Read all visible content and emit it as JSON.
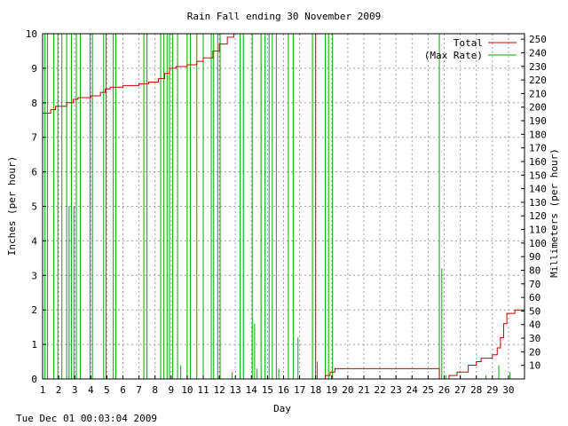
{
  "chart_data": {
    "type": "line",
    "title": "Rain Fall ending 30 November 2009",
    "xlabel": "Day",
    "ylabel": "Inches (per hour)",
    "ylabel_right": "Millimeters (per hour)",
    "footer": "Tue Dec 01 00:03:04 2009",
    "xlim": [
      1,
      31
    ],
    "ylim": [
      0,
      10
    ],
    "ylim_right": [
      0,
      254
    ],
    "x_ticks": [
      "1",
      "2",
      "3",
      "4",
      "5",
      "6",
      "7",
      "8",
      "9",
      "10",
      "11",
      "12",
      "13",
      "14",
      "15",
      "16",
      "17",
      "18",
      "19",
      "20",
      "21",
      "22",
      "23",
      "24",
      "25",
      "26",
      "27",
      "28",
      "29",
      "30"
    ],
    "y_ticks_left": [
      "0",
      "1",
      "2",
      "3",
      "4",
      "5",
      "6",
      "7",
      "8",
      "9",
      "10"
    ],
    "y_ticks_right": [
      "10",
      "20",
      "30",
      "40",
      "50",
      "60",
      "70",
      "80",
      "90",
      "100",
      "110",
      "120",
      "130",
      "140",
      "150",
      "160",
      "170",
      "180",
      "190",
      "200",
      "210",
      "220",
      "230",
      "240",
      "250"
    ],
    "grid": true,
    "legend_position": "top-right",
    "series": [
      {
        "name": "Total",
        "color": "#cc0000",
        "step": true,
        "points": [
          [
            1.0,
            7.7
          ],
          [
            1.5,
            7.8
          ],
          [
            1.8,
            7.9
          ],
          [
            2.5,
            8.0
          ],
          [
            2.9,
            8.1
          ],
          [
            3.2,
            8.15
          ],
          [
            4.0,
            8.2
          ],
          [
            4.6,
            8.3
          ],
          [
            4.9,
            8.4
          ],
          [
            5.2,
            8.45
          ],
          [
            6.0,
            8.5
          ],
          [
            7.0,
            8.55
          ],
          [
            7.6,
            8.6
          ],
          [
            8.2,
            8.7
          ],
          [
            8.6,
            8.85
          ],
          [
            8.9,
            9.0
          ],
          [
            9.3,
            9.05
          ],
          [
            10.0,
            9.1
          ],
          [
            10.6,
            9.2
          ],
          [
            11.0,
            9.3
          ],
          [
            11.6,
            9.5
          ],
          [
            12.0,
            9.7
          ],
          [
            12.5,
            9.9
          ],
          [
            12.9,
            10.0
          ],
          [
            17.95,
            10.0
          ],
          [
            18.0,
            0.0
          ],
          [
            18.6,
            0.1
          ],
          [
            18.9,
            0.2
          ],
          [
            19.2,
            0.3
          ],
          [
            25.6,
            0.3
          ],
          [
            25.7,
            0.0
          ],
          [
            26.3,
            0.1
          ],
          [
            26.8,
            0.2
          ],
          [
            27.5,
            0.4
          ],
          [
            28.0,
            0.5
          ],
          [
            28.3,
            0.6
          ],
          [
            29.0,
            0.7
          ],
          [
            29.3,
            0.9
          ],
          [
            29.5,
            1.2
          ],
          [
            29.7,
            1.6
          ],
          [
            29.9,
            1.9
          ],
          [
            30.4,
            2.0
          ],
          [
            31.0,
            2.0
          ]
        ]
      },
      {
        "name": "(Max Rate)",
        "color": "#00aa00",
        "spikes": [
          [
            1.15,
            10
          ],
          [
            1.3,
            10
          ],
          [
            1.7,
            10
          ],
          [
            1.95,
            10
          ],
          [
            2.2,
            10
          ],
          [
            2.5,
            10
          ],
          [
            2.65,
            5
          ],
          [
            2.8,
            10
          ],
          [
            2.95,
            5
          ],
          [
            3.1,
            10
          ],
          [
            3.35,
            10
          ],
          [
            3.95,
            10
          ],
          [
            4.1,
            10
          ],
          [
            4.8,
            10
          ],
          [
            4.95,
            10
          ],
          [
            5.4,
            10
          ],
          [
            5.55,
            10
          ],
          [
            7.3,
            10
          ],
          [
            7.5,
            10
          ],
          [
            8.35,
            10
          ],
          [
            8.55,
            10
          ],
          [
            8.75,
            10
          ],
          [
            8.9,
            10
          ],
          [
            9.1,
            10
          ],
          [
            9.4,
            10
          ],
          [
            9.6,
            0.4
          ],
          [
            10.0,
            10
          ],
          [
            10.2,
            10
          ],
          [
            10.6,
            10
          ],
          [
            11.0,
            10
          ],
          [
            11.5,
            10
          ],
          [
            11.65,
            10
          ],
          [
            11.9,
            10
          ],
          [
            12.05,
            10
          ],
          [
            12.8,
            0.2
          ],
          [
            13.3,
            10
          ],
          [
            13.5,
            10
          ],
          [
            14.05,
            10
          ],
          [
            14.2,
            1.6
          ],
          [
            14.35,
            0.3
          ],
          [
            14.6,
            10
          ],
          [
            14.85,
            10
          ],
          [
            15.1,
            10
          ],
          [
            15.3,
            10
          ],
          [
            15.55,
            10
          ],
          [
            15.7,
            0.3
          ],
          [
            16.3,
            10
          ],
          [
            16.6,
            10
          ],
          [
            16.9,
            1.2
          ],
          [
            17.8,
            10
          ],
          [
            18.1,
            0.5
          ],
          [
            18.6,
            10
          ],
          [
            18.8,
            10
          ],
          [
            19.05,
            10
          ],
          [
            25.7,
            10
          ],
          [
            25.85,
            3.2
          ],
          [
            26.1,
            0.1
          ],
          [
            27.0,
            0.1
          ],
          [
            28.6,
            0.1
          ],
          [
            29.4,
            0.4
          ],
          [
            30.1,
            0.2
          ]
        ]
      }
    ]
  }
}
